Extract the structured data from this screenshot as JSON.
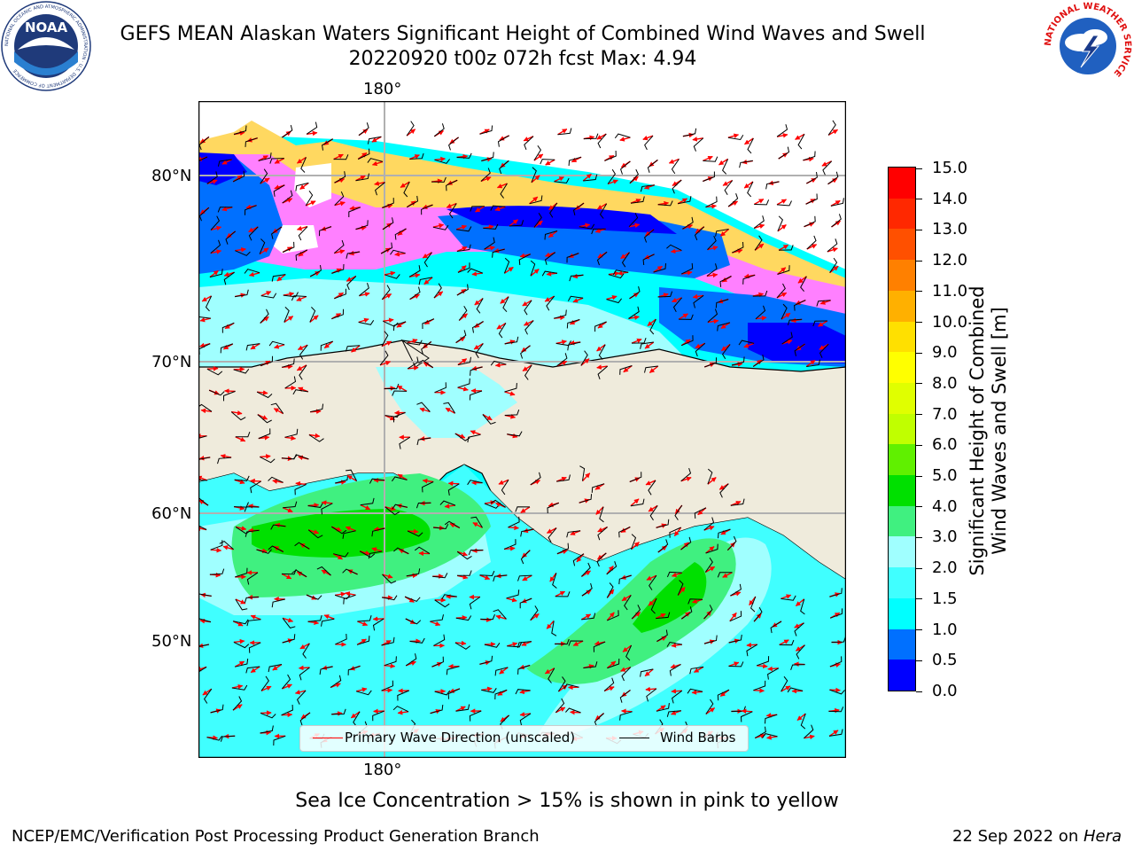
{
  "title": {
    "line1": "GEFS MEAN Alaskan Waters Significant Height of Combined Wind Waves and Swell",
    "line2": "20220920 t00z 072h fcst   Max: 4.94"
  },
  "logos": {
    "noaa": {
      "icon": "noaa-logo-icon",
      "text": "NOAA",
      "ring_text": "NATIONAL OCEANIC AND ATMOSPHERIC ADMINISTRATION · U.S. DEPARTMENT OF COMMERCE"
    },
    "nws": {
      "icon": "nws-logo-icon",
      "ring_text": "NATIONAL WEATHER SERVICE"
    }
  },
  "map": {
    "top_meridian_label": "180°",
    "bottom_meridian_label": "180°",
    "lat_labels": [
      "80°N",
      "70°N",
      "60°N",
      "50°N"
    ],
    "colors": {
      "land": "#efebdc",
      "sea_ice_edge": "#ff80ff",
      "ice_mid": "#ffa8c8",
      "ice_yellow": "#ffd860",
      "grid": "#b0b0b0"
    }
  },
  "colorbar": {
    "title_line1": "Significant Height of Combined",
    "title_line2": "Wind Waves and Swell [m]",
    "ticks": [
      "0.0",
      "0.5",
      "1.0",
      "1.5",
      "2.0",
      "3.0",
      "4.0",
      "5.0",
      "6.0",
      "7.0",
      "8.0",
      "9.0",
      "10.0",
      "11.0",
      "12.0",
      "13.0",
      "14.0",
      "15.0"
    ],
    "colors": [
      "#0000ff",
      "#0070ff",
      "#00ffff",
      "#40ffff",
      "#a0ffff",
      "#40f080",
      "#00e000",
      "#60f000",
      "#c0ff00",
      "#e0ff00",
      "#ffff00",
      "#ffe000",
      "#ffb000",
      "#ff8000",
      "#ff5000",
      "#ff2800",
      "#ff0000"
    ]
  },
  "legend": {
    "primary_wave_label": "Primary Wave Direction (unscaled)",
    "wind_barbs_label": "Wind Barbs",
    "primary_wave_color": "#ff0000",
    "wind_barbs_color": "#000000"
  },
  "note": "Sea Ice Concentration > 15% is shown in pink to yellow",
  "footer": {
    "left": "NCEP/EMC/Verification Post Processing Product Generation Branch",
    "date": "22 Sep 2022 on ",
    "machine": "Hera"
  }
}
